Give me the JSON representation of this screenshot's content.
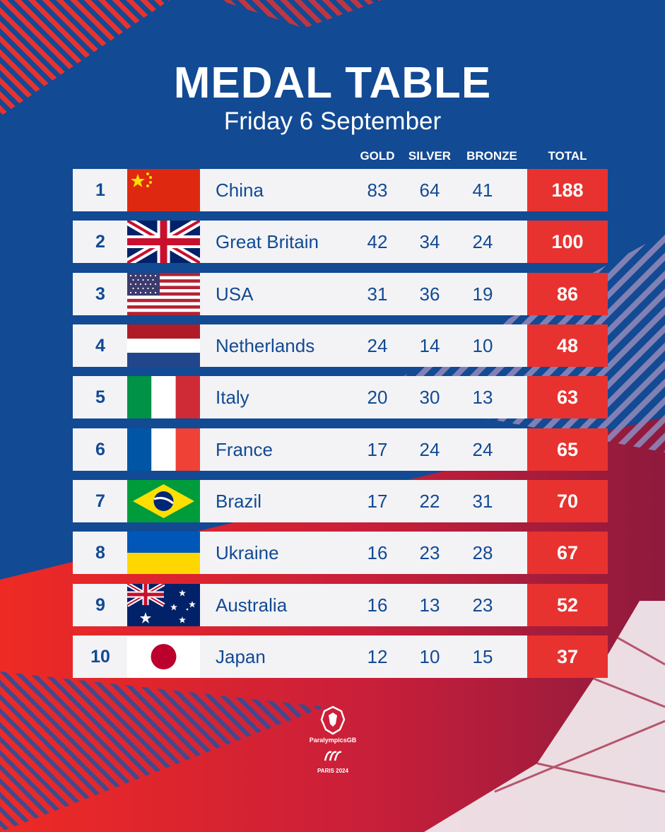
{
  "title": "MEDAL TABLE",
  "subtitle": "Friday 6 September",
  "columns": {
    "gold": "GOLD",
    "silver": "SILVER",
    "bronze": "BRONZE",
    "total": "TOTAL"
  },
  "rows": [
    {
      "rank": "1",
      "country": "China",
      "flag": "china-flag",
      "gold": "83",
      "silver": "64",
      "bronze": "41",
      "total": "188"
    },
    {
      "rank": "2",
      "country": "Great Britain",
      "flag": "great-britain-flag",
      "gold": "42",
      "silver": "34",
      "bronze": "24",
      "total": "100"
    },
    {
      "rank": "3",
      "country": "USA",
      "flag": "usa-flag",
      "gold": "31",
      "silver": "36",
      "bronze": "19",
      "total": "86"
    },
    {
      "rank": "4",
      "country": "Netherlands",
      "flag": "netherlands-flag",
      "gold": "24",
      "silver": "14",
      "bronze": "10",
      "total": "48"
    },
    {
      "rank": "5",
      "country": "Italy",
      "flag": "italy-flag",
      "gold": "20",
      "silver": "30",
      "bronze": "13",
      "total": "63"
    },
    {
      "rank": "6",
      "country": "France",
      "flag": "france-flag",
      "gold": "17",
      "silver": "24",
      "bronze": "24",
      "total": "65"
    },
    {
      "rank": "7",
      "country": "Brazil",
      "flag": "brazil-flag",
      "gold": "17",
      "silver": "22",
      "bronze": "31",
      "total": "70"
    },
    {
      "rank": "8",
      "country": "Ukraine",
      "flag": "ukraine-flag",
      "gold": "16",
      "silver": "23",
      "bronze": "28",
      "total": "67"
    },
    {
      "rank": "9",
      "country": "Australia",
      "flag": "australia-flag",
      "gold": "16",
      "silver": "13",
      "bronze": "23",
      "total": "52"
    },
    {
      "rank": "10",
      "country": "Japan",
      "flag": "japan-flag",
      "gold": "12",
      "silver": "10",
      "bronze": "15",
      "total": "37"
    }
  ],
  "logo": {
    "brand": "ParalympicsGB",
    "event": "PARIS 2024",
    "icon": "lion-icon"
  },
  "colors": {
    "blue": "#124a93",
    "red": "#e8322f",
    "row_bg": "#f3f3f6"
  }
}
